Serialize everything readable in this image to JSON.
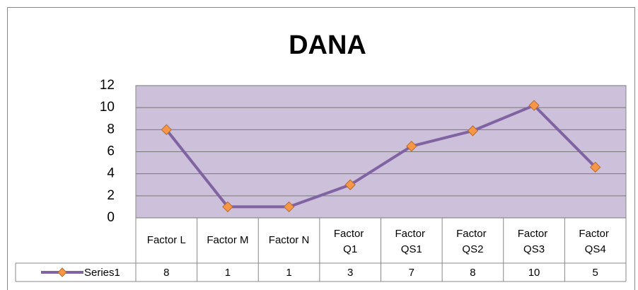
{
  "chart_data": {
    "type": "line",
    "title": "DANA",
    "categories": [
      "Factor L",
      "Factor M",
      "Factor N",
      "Factor Q1",
      "Factor QS1",
      "Factor QS2",
      "Factor QS3",
      "Factor QS4"
    ],
    "series": [
      {
        "name": "Series1",
        "color": "#8064a2",
        "marker_color": "#f79646",
        "values": [
          8,
          1,
          1,
          3,
          6.5,
          7.9,
          10.2,
          4.6
        ],
        "value_labels": [
          "8",
          "1",
          "1",
          "3",
          "7",
          "8",
          "10",
          "5"
        ]
      }
    ],
    "ylim": [
      0,
      12
    ],
    "yticks": [
      0,
      2,
      4,
      6,
      8,
      10,
      12
    ],
    "grid": true,
    "plot_background": "#ccc0da"
  }
}
